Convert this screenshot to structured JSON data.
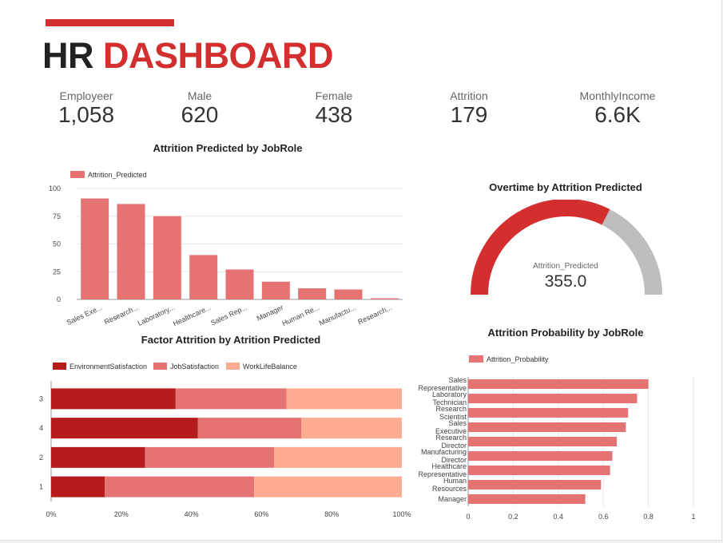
{
  "header": {
    "title_part1": "HR ",
    "title_part2": "DASHBOARD"
  },
  "kpis": [
    {
      "label": "Employeer",
      "value": "1,058"
    },
    {
      "label": "Male",
      "value": "620"
    },
    {
      "label": "Female",
      "value": "438"
    },
    {
      "label": "Attrition",
      "value": "179"
    },
    {
      "label": "MonthlyIncome",
      "value": "6.6K"
    }
  ],
  "colors": {
    "accent": "#d32f2f",
    "bar_red": "#e57373",
    "dark_red": "#b71c1c",
    "peach": "#ffab91",
    "gauge_rest": "#bdbdbd"
  },
  "chart_data": [
    {
      "type": "bar",
      "title": "Attrition Predicted by JobRole",
      "legend": "top-left",
      "grid": true,
      "series": [
        {
          "name": "Attrition_Predicted",
          "values": [
            91,
            86,
            75,
            40,
            27,
            16,
            10,
            9,
            1
          ]
        }
      ],
      "categories": [
        "Sales Exe...",
        "Research...",
        "Laboratory...",
        "Healthcare...",
        "Sales Rep...",
        "Manager",
        "Human Re...",
        "Manufactu...",
        "Research..."
      ],
      "yticks": [
        "0",
        "25",
        "50",
        "75",
        "100"
      ],
      "ylim": [
        0,
        100
      ]
    },
    {
      "type": "gauge",
      "title": "Overtime by Attrition Predicted",
      "label": "Attrition_Predicted",
      "value": 355,
      "value_text": "355.0",
      "fraction": 0.65
    },
    {
      "type": "bar",
      "orientation": "horizontal",
      "stacked": "percent",
      "title": "Factor Attrition by Atrition Predicted",
      "legend": "top-left",
      "categories": [
        "3",
        "4",
        "2",
        "1"
      ],
      "series": [
        {
          "name": "EnvironmentSatisfaction",
          "values": [
            35.5,
            41.8,
            26.8,
            15.3
          ]
        },
        {
          "name": "JobSatisfaction",
          "values": [
            31.6,
            29.5,
            36.8,
            42.6
          ]
        },
        {
          "name": "WorkLifeBalance",
          "values": [
            32.9,
            28.7,
            36.4,
            42.1
          ]
        }
      ],
      "xticks": [
        "0%",
        "20%",
        "40%",
        "60%",
        "80%",
        "100%"
      ],
      "xlim": [
        0,
        100
      ]
    },
    {
      "type": "bar",
      "orientation": "horizontal",
      "title": "Attrition Probability by JobRole",
      "legend": "top-left",
      "grid": true,
      "series": [
        {
          "name": "Attrition_Probability",
          "values": [
            0.8,
            0.75,
            0.71,
            0.7,
            0.66,
            0.64,
            0.63,
            0.59,
            0.52
          ]
        }
      ],
      "categories": [
        [
          "Sales",
          "Representative"
        ],
        [
          "Laboratory",
          "Technician"
        ],
        [
          "Research",
          "Scientist"
        ],
        [
          "Sales",
          "Executive"
        ],
        [
          "Research",
          "Director"
        ],
        [
          "Manufacturing",
          "Director"
        ],
        [
          "Healthcare",
          "Representative"
        ],
        [
          "Human",
          "Resources"
        ],
        [
          "Manager"
        ]
      ],
      "xticks": [
        "0",
        "0.2",
        "0.4",
        "0.6",
        "0.8",
        "1"
      ],
      "xlim": [
        0,
        1
      ]
    }
  ]
}
